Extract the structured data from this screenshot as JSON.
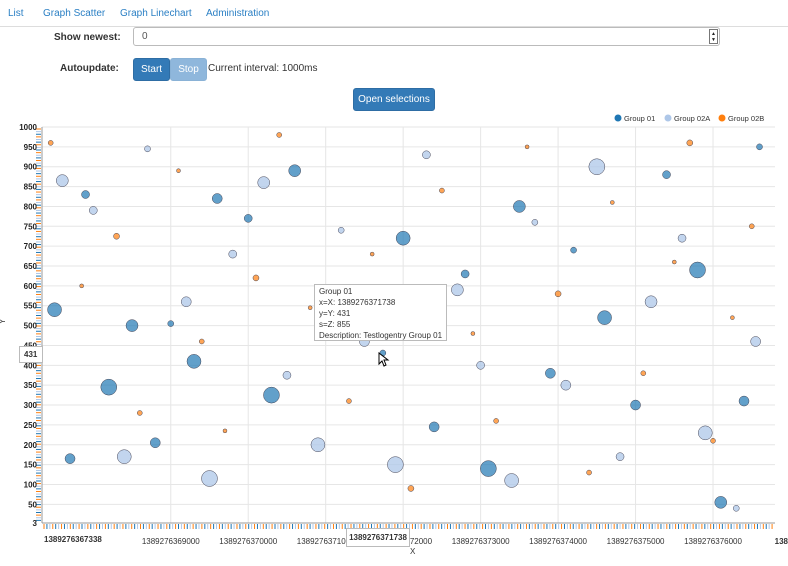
{
  "nav": {
    "items": [
      "List",
      "Graph Scatter",
      "Graph Linechart",
      "Administration"
    ]
  },
  "controls": {
    "show_newest_label": "Show newest:",
    "show_newest_value": "0",
    "autoupdate_label": "Autoupdate:",
    "start_label": "Start",
    "stop_label": "Stop",
    "interval_text": "Current interval: 1000ms",
    "open_selections_label": "Open selections"
  },
  "colors": {
    "accent": "#337ab7",
    "group01": "#1f77b4",
    "group02a": "#aec7e8",
    "group02b": "#ff7f0e"
  },
  "tooltip": {
    "line1": "Group 01",
    "line2": "x=X: 1389276371738",
    "line3": "y=Y: 431",
    "line4": "s=Z: 855",
    "line5": "Description: Testlogentry Group 01"
  },
  "crosshair": {
    "y_value": "431",
    "x_value": "1389276371738"
  },
  "chart_data": {
    "type": "scatter",
    "xlabel": "X",
    "ylabel": "Y",
    "ylim": [
      3,
      1000
    ],
    "y_ticks": [
      "1000",
      "950",
      "900",
      "850",
      "800",
      "750",
      "700",
      "650",
      "600",
      "550",
      "500",
      "450",
      "400",
      "350",
      "300",
      "250",
      "200",
      "150",
      "100",
      "50",
      "3"
    ],
    "x_ticks": [
      "1389276367338",
      "1389276369000",
      "1389276370000",
      "1389276371000",
      "1389276372000",
      "1389276373000",
      "1389276374000",
      "1389276375000",
      "1389276376000",
      "138"
    ],
    "legend": [
      "Group 01",
      "Group 02A",
      "Group 02B"
    ],
    "legend_position": "top-right",
    "grid": true,
    "series": [
      {
        "name": "Group 01",
        "points": [
          [
            1389276367500,
            540
          ],
          [
            1389276367700,
            165
          ],
          [
            1389276367900,
            830
          ],
          [
            1389276368200,
            345
          ],
          [
            1389276368500,
            500
          ],
          [
            1389276368800,
            205
          ],
          [
            1389276369000,
            505
          ],
          [
            1389276369300,
            410
          ],
          [
            1389276369600,
            820
          ],
          [
            1389276370000,
            770
          ],
          [
            1389276370300,
            325
          ],
          [
            1389276370600,
            890
          ],
          [
            1389276371000,
            485
          ],
          [
            1389276371738,
            431
          ],
          [
            1389276372000,
            720
          ],
          [
            1389276372400,
            245
          ],
          [
            1389276372800,
            630
          ],
          [
            1389276373100,
            140
          ],
          [
            1389276373500,
            800
          ],
          [
            1389276373900,
            380
          ],
          [
            1389276374200,
            690
          ],
          [
            1389276374600,
            520
          ],
          [
            1389276375000,
            300
          ],
          [
            1389276375400,
            880
          ],
          [
            1389276375800,
            640
          ],
          [
            1389276376100,
            55
          ],
          [
            1389276376400,
            310
          ],
          [
            1389276376600,
            950
          ]
        ]
      },
      {
        "name": "Group 02A",
        "points": [
          [
            1389276367600,
            865
          ],
          [
            1389276368000,
            790
          ],
          [
            1389276368400,
            170
          ],
          [
            1389276368700,
            945
          ],
          [
            1389276369200,
            560
          ],
          [
            1389276369500,
            115
          ],
          [
            1389276369800,
            680
          ],
          [
            1389276370200,
            860
          ],
          [
            1389276370500,
            375
          ],
          [
            1389276370900,
            200
          ],
          [
            1389276371200,
            740
          ],
          [
            1389276371500,
            460
          ],
          [
            1389276371900,
            150
          ],
          [
            1389276372300,
            930
          ],
          [
            1389276372700,
            590
          ],
          [
            1389276373000,
            400
          ],
          [
            1389276373400,
            110
          ],
          [
            1389276373700,
            760
          ],
          [
            1389276374100,
            350
          ],
          [
            1389276374500,
            900
          ],
          [
            1389276374800,
            170
          ],
          [
            1389276375200,
            560
          ],
          [
            1389276375600,
            720
          ],
          [
            1389276375900,
            230
          ],
          [
            1389276376300,
            40
          ],
          [
            1389276376550,
            460
          ]
        ]
      },
      {
        "name": "Group 02B",
        "points": [
          [
            1389276367450,
            960
          ],
          [
            1389276367850,
            600
          ],
          [
            1389276368300,
            725
          ],
          [
            1389276368600,
            280
          ],
          [
            1389276369100,
            890
          ],
          [
            1389276369400,
            460
          ],
          [
            1389276369700,
            235
          ],
          [
            1389276370100,
            620
          ],
          [
            1389276370400,
            980
          ],
          [
            1389276370800,
            545
          ],
          [
            1389276371300,
            310
          ],
          [
            1389276371600,
            680
          ],
          [
            1389276372100,
            90
          ],
          [
            1389276372500,
            840
          ],
          [
            1389276372900,
            480
          ],
          [
            1389276373200,
            260
          ],
          [
            1389276373600,
            950
          ],
          [
            1389276374000,
            580
          ],
          [
            1389276374400,
            130
          ],
          [
            1389276374700,
            810
          ],
          [
            1389276375100,
            380
          ],
          [
            1389276375500,
            660
          ],
          [
            1389276375700,
            960
          ],
          [
            1389276376000,
            210
          ],
          [
            1389276376250,
            520
          ],
          [
            1389276376500,
            750
          ]
        ]
      }
    ]
  }
}
